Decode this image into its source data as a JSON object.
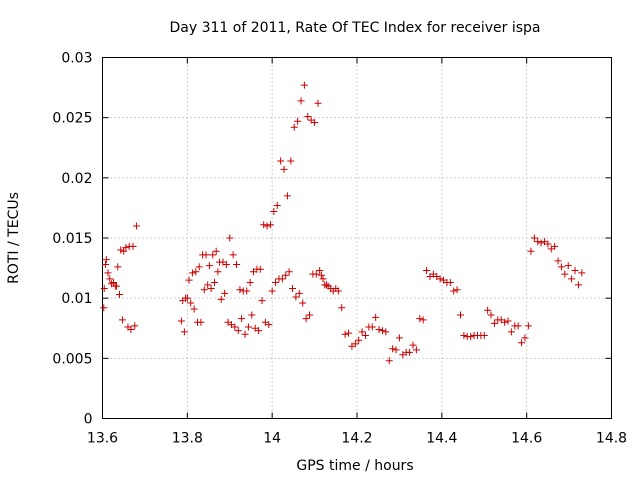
{
  "chart_data": {
    "type": "scatter",
    "title": "Day 311 of 2011, Rate Of TEC Index for receiver ispa",
    "xlabel": "GPS time / hours",
    "ylabel": "ROTI / TECUs",
    "xlim": [
      13.6,
      14.8
    ],
    "ylim": [
      0,
      0.03
    ],
    "xticks": [
      "13.6",
      "13.8",
      "14",
      "14.2",
      "14.4",
      "14.6",
      "14.8"
    ],
    "yticks": [
      "0",
      "0.005",
      "0.01",
      "0.015",
      "0.02",
      "0.025",
      "0.03"
    ],
    "grid": true,
    "marker": "+",
    "color": "#cc0000",
    "series": [
      {
        "name": "ROTI",
        "points": [
          [
            13.603,
            0.0092
          ],
          [
            13.604,
            0.0108
          ],
          [
            13.607,
            0.0128
          ],
          [
            13.609,
            0.0132
          ],
          [
            13.613,
            0.0121
          ],
          [
            13.617,
            0.0116
          ],
          [
            13.621,
            0.0112
          ],
          [
            13.626,
            0.0113
          ],
          [
            13.63,
            0.011
          ],
          [
            13.633,
            0.011
          ],
          [
            13.636,
            0.0126
          ],
          [
            13.64,
            0.0103
          ],
          [
            13.643,
            0.014
          ],
          [
            13.647,
            0.0082
          ],
          [
            13.65,
            0.0139
          ],
          [
            13.655,
            0.0142
          ],
          [
            13.66,
            0.0076
          ],
          [
            13.663,
            0.0143
          ],
          [
            13.667,
            0.0074
          ],
          [
            13.672,
            0.0143
          ],
          [
            13.676,
            0.0077
          ],
          [
            13.68,
            0.016
          ],
          [
            13.786,
            0.0081
          ],
          [
            13.789,
            0.0098
          ],
          [
            13.793,
            0.0072
          ],
          [
            13.796,
            0.01
          ],
          [
            13.8,
            0.01
          ],
          [
            13.804,
            0.0115
          ],
          [
            13.808,
            0.0096
          ],
          [
            13.812,
            0.0121
          ],
          [
            13.816,
            0.0091
          ],
          [
            13.82,
            0.0122
          ],
          [
            13.824,
            0.008
          ],
          [
            13.828,
            0.0126
          ],
          [
            13.832,
            0.008
          ],
          [
            13.836,
            0.0136
          ],
          [
            13.84,
            0.0107
          ],
          [
            13.844,
            0.0136
          ],
          [
            13.848,
            0.0111
          ],
          [
            13.852,
            0.0127
          ],
          [
            13.856,
            0.0108
          ],
          [
            13.86,
            0.0136
          ],
          [
            13.864,
            0.0113
          ],
          [
            13.868,
            0.0139
          ],
          [
            13.872,
            0.0122
          ],
          [
            13.876,
            0.013
          ],
          [
            13.88,
            0.0099
          ],
          [
            13.884,
            0.013
          ],
          [
            13.888,
            0.0104
          ],
          [
            13.892,
            0.0128
          ],
          [
            13.896,
            0.008
          ],
          [
            13.9,
            0.015
          ],
          [
            13.904,
            0.0078
          ],
          [
            13.908,
            0.0136
          ],
          [
            13.912,
            0.0076
          ],
          [
            13.916,
            0.0128
          ],
          [
            13.92,
            0.0073
          ],
          [
            13.924,
            0.0107
          ],
          [
            13.928,
            0.0083
          ],
          [
            13.932,
            0.0106
          ],
          [
            13.936,
            0.007
          ],
          [
            13.94,
            0.0106
          ],
          [
            13.944,
            0.0076
          ],
          [
            13.948,
            0.0113
          ],
          [
            13.952,
            0.0086
          ],
          [
            13.956,
            0.0122
          ],
          [
            13.96,
            0.0075
          ],
          [
            13.964,
            0.0124
          ],
          [
            13.968,
            0.0073
          ],
          [
            13.972,
            0.0124
          ],
          [
            13.976,
            0.0098
          ],
          [
            13.98,
            0.0161
          ],
          [
            13.984,
            0.008
          ],
          [
            13.988,
            0.016
          ],
          [
            13.992,
            0.0078
          ],
          [
            13.996,
            0.0161
          ],
          [
            14.0,
            0.0106
          ],
          [
            14.004,
            0.0172
          ],
          [
            14.008,
            0.0113
          ],
          [
            14.012,
            0.0177
          ],
          [
            14.016,
            0.0116
          ],
          [
            14.02,
            0.0214
          ],
          [
            14.024,
            0.0116
          ],
          [
            14.028,
            0.0207
          ],
          [
            14.032,
            0.0119
          ],
          [
            14.036,
            0.0185
          ],
          [
            14.04,
            0.0122
          ],
          [
            14.044,
            0.0214
          ],
          [
            14.048,
            0.0108
          ],
          [
            14.052,
            0.0242
          ],
          [
            14.056,
            0.0101
          ],
          [
            14.06,
            0.0247
          ],
          [
            14.064,
            0.0104
          ],
          [
            14.068,
            0.0264
          ],
          [
            14.072,
            0.0096
          ],
          [
            14.076,
            0.0277
          ],
          [
            14.08,
            0.0083
          ],
          [
            14.084,
            0.0251
          ],
          [
            14.088,
            0.0086
          ],
          [
            14.092,
            0.0248
          ],
          [
            14.096,
            0.012
          ],
          [
            14.1,
            0.0246
          ],
          [
            14.104,
            0.012
          ],
          [
            14.108,
            0.0262
          ],
          [
            14.112,
            0.0123
          ],
          [
            14.116,
            0.0119
          ],
          [
            14.12,
            0.0116
          ],
          [
            14.124,
            0.0111
          ],
          [
            14.128,
            0.0111
          ],
          [
            14.132,
            0.011
          ],
          [
            14.138,
            0.0108
          ],
          [
            14.144,
            0.0106
          ],
          [
            14.15,
            0.0108
          ],
          [
            14.156,
            0.0106
          ],
          [
            14.164,
            0.0092
          ],
          [
            14.172,
            0.007
          ],
          [
            14.18,
            0.0071
          ],
          [
            14.188,
            0.006
          ],
          [
            14.196,
            0.0062
          ],
          [
            14.204,
            0.0065
          ],
          [
            14.212,
            0.0072
          ],
          [
            14.22,
            0.0069
          ],
          [
            14.228,
            0.0076
          ],
          [
            14.236,
            0.0076
          ],
          [
            14.244,
            0.0084
          ],
          [
            14.252,
            0.0074
          ],
          [
            14.26,
            0.0073
          ],
          [
            14.268,
            0.0072
          ],
          [
            14.276,
            0.0048
          ],
          [
            14.284,
            0.0058
          ],
          [
            14.292,
            0.0057
          ],
          [
            14.3,
            0.0067
          ],
          [
            14.308,
            0.0053
          ],
          [
            14.316,
            0.0055
          ],
          [
            14.324,
            0.0055
          ],
          [
            14.332,
            0.0061
          ],
          [
            14.34,
            0.0057
          ],
          [
            14.348,
            0.0083
          ],
          [
            14.356,
            0.0082
          ],
          [
            14.364,
            0.0123
          ],
          [
            14.372,
            0.0118
          ],
          [
            14.38,
            0.012
          ],
          [
            14.388,
            0.0118
          ],
          [
            14.396,
            0.0116
          ],
          [
            14.404,
            0.0115
          ],
          [
            14.412,
            0.0113
          ],
          [
            14.42,
            0.0113
          ],
          [
            14.428,
            0.0106
          ],
          [
            14.436,
            0.0107
          ],
          [
            14.444,
            0.0086
          ],
          [
            14.452,
            0.0069
          ],
          [
            14.46,
            0.0068
          ],
          [
            14.468,
            0.0068
          ],
          [
            14.476,
            0.0069
          ],
          [
            14.484,
            0.0069
          ],
          [
            14.492,
            0.0069
          ],
          [
            14.5,
            0.0069
          ],
          [
            14.508,
            0.009
          ],
          [
            14.516,
            0.0086
          ],
          [
            14.524,
            0.0079
          ],
          [
            14.532,
            0.0082
          ],
          [
            14.54,
            0.0082
          ],
          [
            14.548,
            0.008
          ],
          [
            14.556,
            0.0081
          ],
          [
            14.564,
            0.0072
          ],
          [
            14.572,
            0.0077
          ],
          [
            14.58,
            0.0077
          ],
          [
            14.588,
            0.0063
          ],
          [
            14.596,
            0.0067
          ],
          [
            14.604,
            0.0077
          ],
          [
            14.61,
            0.0139
          ],
          [
            14.618,
            0.015
          ],
          [
            14.626,
            0.0147
          ],
          [
            14.634,
            0.0146
          ],
          [
            14.642,
            0.0147
          ],
          [
            14.65,
            0.0145
          ],
          [
            14.658,
            0.0141
          ],
          [
            14.666,
            0.0143
          ],
          [
            14.674,
            0.0131
          ],
          [
            14.682,
            0.0126
          ],
          [
            14.69,
            0.012
          ],
          [
            14.698,
            0.0127
          ],
          [
            14.706,
            0.0116
          ],
          [
            14.714,
            0.0123
          ],
          [
            14.722,
            0.0111
          ],
          [
            14.73,
            0.0121
          ]
        ]
      }
    ]
  }
}
